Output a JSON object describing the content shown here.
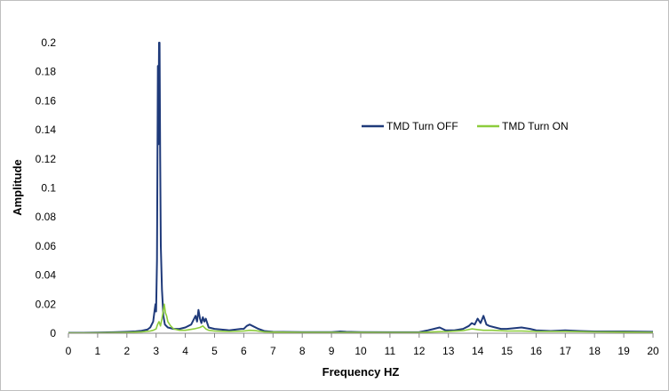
{
  "chart_data": {
    "type": "line",
    "title": "",
    "xlabel": "Frequency HZ",
    "ylabel": "Amplitude",
    "xlim": [
      0,
      20
    ],
    "ylim": [
      0,
      0.2
    ],
    "x_ticks": [
      "0",
      "1",
      "2",
      "3",
      "4",
      "5",
      "6",
      "7",
      "8",
      "9",
      "10",
      "11",
      "12",
      "13",
      "14",
      "15",
      "16",
      "17",
      "18",
      "19",
      "20"
    ],
    "y_ticks": [
      "0",
      "0.02",
      "0.04",
      "0.06",
      "0.08",
      "0.1",
      "0.12",
      "0.14",
      "0.16",
      "0.18",
      "0.2"
    ],
    "grid": false,
    "legend_position": "top-right",
    "series": [
      {
        "name": "TMD Turn OFF",
        "color": "#1f3a7a",
        "points": [
          [
            0,
            0.0003
          ],
          [
            0.5,
            0.0003
          ],
          [
            1.0,
            0.0005
          ],
          [
            1.5,
            0.0007
          ],
          [
            2.0,
            0.001
          ],
          [
            2.3,
            0.0013
          ],
          [
            2.5,
            0.0017
          ],
          [
            2.7,
            0.0025
          ],
          [
            2.8,
            0.004
          ],
          [
            2.9,
            0.008
          ],
          [
            2.95,
            0.016
          ],
          [
            2.98,
            0.02
          ],
          [
            3.0,
            0.015
          ],
          [
            3.03,
            0.05
          ],
          [
            3.06,
            0.184
          ],
          [
            3.08,
            0.13
          ],
          [
            3.1,
            0.2
          ],
          [
            3.12,
            0.2
          ],
          [
            3.14,
            0.12
          ],
          [
            3.16,
            0.06
          ],
          [
            3.2,
            0.03
          ],
          [
            3.25,
            0.012
          ],
          [
            3.3,
            0.006
          ],
          [
            3.4,
            0.004
          ],
          [
            3.6,
            0.003
          ],
          [
            3.8,
            0.003
          ],
          [
            4.0,
            0.004
          ],
          [
            4.2,
            0.006
          ],
          [
            4.35,
            0.012
          ],
          [
            4.4,
            0.008
          ],
          [
            4.45,
            0.016
          ],
          [
            4.5,
            0.01
          ],
          [
            4.55,
            0.007
          ],
          [
            4.6,
            0.011
          ],
          [
            4.65,
            0.008
          ],
          [
            4.7,
            0.01
          ],
          [
            4.8,
            0.004
          ],
          [
            5.0,
            0.003
          ],
          [
            5.5,
            0.002
          ],
          [
            5.9,
            0.003
          ],
          [
            6.0,
            0.003
          ],
          [
            6.1,
            0.005
          ],
          [
            6.2,
            0.006
          ],
          [
            6.3,
            0.005
          ],
          [
            6.5,
            0.003
          ],
          [
            6.7,
            0.0015
          ],
          [
            7.0,
            0.001
          ],
          [
            8.0,
            0.0008
          ],
          [
            9.0,
            0.0008
          ],
          [
            9.3,
            0.0012
          ],
          [
            9.5,
            0.001
          ],
          [
            10.0,
            0.0008
          ],
          [
            11.0,
            0.0007
          ],
          [
            12.0,
            0.0008
          ],
          [
            12.3,
            0.002
          ],
          [
            12.5,
            0.003
          ],
          [
            12.7,
            0.004
          ],
          [
            12.9,
            0.002
          ],
          [
            13.2,
            0.002
          ],
          [
            13.5,
            0.003
          ],
          [
            13.7,
            0.005
          ],
          [
            13.8,
            0.007
          ],
          [
            13.9,
            0.006
          ],
          [
            14.0,
            0.01
          ],
          [
            14.1,
            0.007
          ],
          [
            14.2,
            0.012
          ],
          [
            14.3,
            0.006
          ],
          [
            14.4,
            0.005
          ],
          [
            14.6,
            0.004
          ],
          [
            14.8,
            0.003
          ],
          [
            15.0,
            0.003
          ],
          [
            15.5,
            0.004
          ],
          [
            15.8,
            0.003
          ],
          [
            16.0,
            0.002
          ],
          [
            16.5,
            0.0015
          ],
          [
            17.0,
            0.002
          ],
          [
            17.5,
            0.0015
          ],
          [
            18.0,
            0.0012
          ],
          [
            19.0,
            0.0012
          ],
          [
            20.0,
            0.001
          ]
        ]
      },
      {
        "name": "TMD Turn ON",
        "color": "#8ccc3c",
        "points": [
          [
            0,
            0.0002
          ],
          [
            0.5,
            0.0002
          ],
          [
            1.0,
            0.0003
          ],
          [
            1.5,
            0.0004
          ],
          [
            2.0,
            0.0006
          ],
          [
            2.5,
            0.001
          ],
          [
            2.8,
            0.0015
          ],
          [
            2.9,
            0.002
          ],
          [
            3.0,
            0.003
          ],
          [
            3.05,
            0.006
          ],
          [
            3.1,
            0.008
          ],
          [
            3.15,
            0.005
          ],
          [
            3.2,
            0.01
          ],
          [
            3.25,
            0.016
          ],
          [
            3.28,
            0.02
          ],
          [
            3.32,
            0.014
          ],
          [
            3.36,
            0.012
          ],
          [
            3.4,
            0.008
          ],
          [
            3.5,
            0.005
          ],
          [
            3.6,
            0.003
          ],
          [
            3.8,
            0.002
          ],
          [
            4.0,
            0.002
          ],
          [
            4.3,
            0.003
          ],
          [
            4.5,
            0.004
          ],
          [
            4.6,
            0.005
          ],
          [
            4.7,
            0.003
          ],
          [
            4.8,
            0.002
          ],
          [
            5.0,
            0.0015
          ],
          [
            5.5,
            0.0012
          ],
          [
            6.0,
            0.0015
          ],
          [
            6.2,
            0.002
          ],
          [
            6.4,
            0.0018
          ],
          [
            6.7,
            0.001
          ],
          [
            7.0,
            0.0008
          ],
          [
            8.0,
            0.0006
          ],
          [
            9.0,
            0.0006
          ],
          [
            10.0,
            0.0006
          ],
          [
            11.0,
            0.0005
          ],
          [
            12.0,
            0.0006
          ],
          [
            12.5,
            0.001
          ],
          [
            13.0,
            0.0012
          ],
          [
            13.5,
            0.0018
          ],
          [
            13.8,
            0.003
          ],
          [
            14.0,
            0.0025
          ],
          [
            14.2,
            0.002
          ],
          [
            14.5,
            0.002
          ],
          [
            15.0,
            0.0015
          ],
          [
            15.5,
            0.0015
          ],
          [
            16.0,
            0.0012
          ],
          [
            16.5,
            0.0012
          ],
          [
            17.0,
            0.0013
          ],
          [
            18.0,
            0.0009
          ],
          [
            19.0,
            0.0008
          ],
          [
            20.0,
            0.0006
          ]
        ]
      }
    ]
  }
}
